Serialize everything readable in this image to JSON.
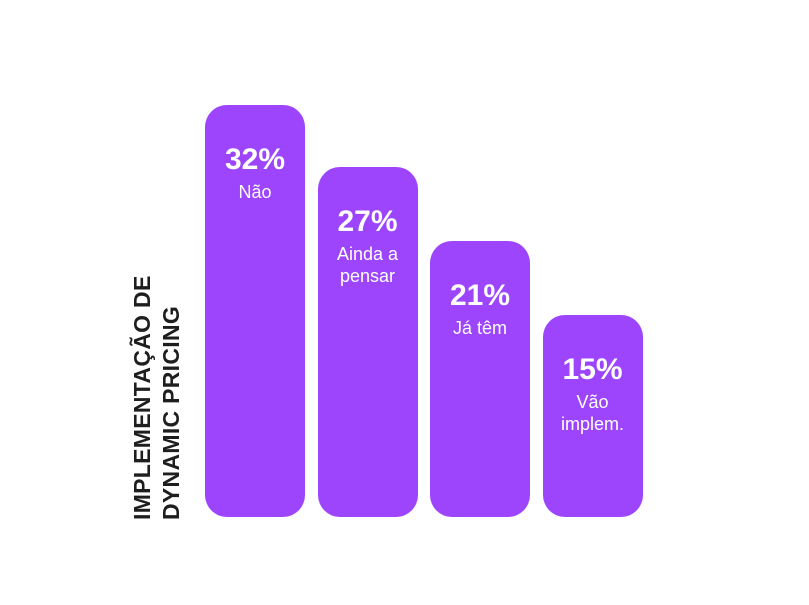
{
  "chart_data": {
    "type": "bar",
    "title": "IMPLEMENTAÇÃO DE DYNAMIC PRICING",
    "categories": [
      "Não",
      "Ainda a pensar",
      "Já têm",
      "Vão implem."
    ],
    "values": [
      32,
      27,
      21,
      15
    ],
    "value_labels": [
      "32%",
      "27%",
      "21%",
      "15%"
    ],
    "color": "#9c45fd"
  }
}
